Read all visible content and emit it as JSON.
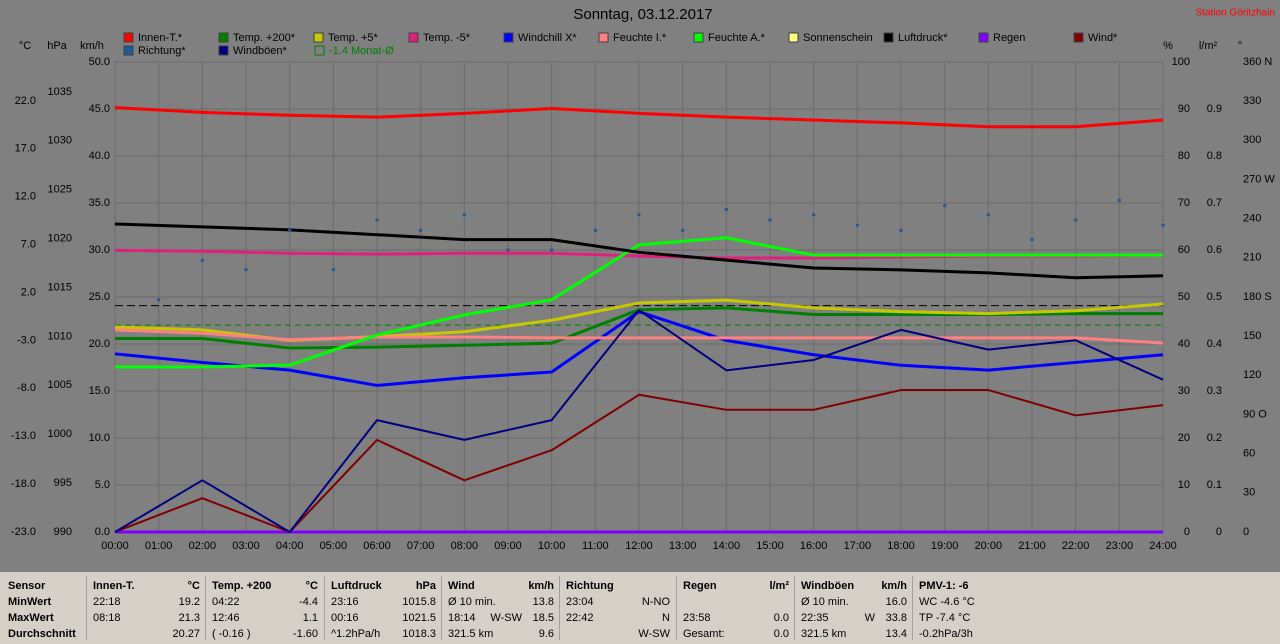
{
  "title": "Sonntag, 03.12.2017",
  "station": "Station Göritzhain",
  "chart_data": {
    "type": "line",
    "x": [
      0,
      2,
      4,
      6,
      8,
      10,
      12,
      14,
      16,
      18,
      20,
      22,
      24
    ],
    "xlim": [
      0,
      24
    ],
    "xticks": [
      {
        "value": 0,
        "label": "00:00"
      },
      {
        "value": 1,
        "label": "01:00"
      },
      {
        "value": 2,
        "label": "02:00"
      },
      {
        "value": 3,
        "label": "03:00"
      },
      {
        "value": 4,
        "label": "04:00"
      },
      {
        "value": 5,
        "label": "05:00"
      },
      {
        "value": 6,
        "label": "06:00"
      },
      {
        "value": 7,
        "label": "07:00"
      },
      {
        "value": 8,
        "label": "08:00"
      },
      {
        "value": 9,
        "label": "09:00"
      },
      {
        "value": 10,
        "label": "10:00"
      },
      {
        "value": 11,
        "label": "11:00"
      },
      {
        "value": 12,
        "label": "12:00"
      },
      {
        "value": 13,
        "label": "13:00"
      },
      {
        "value": 14,
        "label": "14:00"
      },
      {
        "value": 15,
        "label": "15:00"
      },
      {
        "value": 16,
        "label": "16:00"
      },
      {
        "value": 17,
        "label": "17:00"
      },
      {
        "value": 18,
        "label": "18:00"
      },
      {
        "value": 19,
        "label": "19:00"
      },
      {
        "value": 20,
        "label": "20:00"
      },
      {
        "value": 21,
        "label": "21:00"
      },
      {
        "value": 22,
        "label": "22:00"
      },
      {
        "value": 23,
        "label": "23:00"
      },
      {
        "value": 24,
        "label": "24:00"
      }
    ],
    "grid": true,
    "axes": [
      {
        "id": "C",
        "unit": "°C",
        "lim": [
          -23,
          26.06
        ],
        "ticks": [
          {
            "value": -23,
            "label": "-23.0"
          },
          {
            "value": -18,
            "label": "-18.0"
          },
          {
            "value": -13,
            "label": "-13.0"
          },
          {
            "value": -8,
            "label": "-8.0"
          },
          {
            "value": -3,
            "label": "-3.0"
          },
          {
            "value": 2,
            "label": "2.0"
          },
          {
            "value": 7,
            "label": "7.0"
          },
          {
            "value": 12,
            "label": "12.0"
          },
          {
            "value": 17,
            "label": "17.0"
          },
          {
            "value": 22,
            "label": "22.0"
          }
        ]
      },
      {
        "id": "P",
        "unit": "hPa",
        "lim": [
          990,
          1038.06
        ],
        "ticks": [
          990,
          995,
          1000,
          1005,
          1010,
          1015,
          1020,
          1025,
          1030,
          1035
        ]
      },
      {
        "id": "K",
        "unit": "km/h",
        "lim": [
          0,
          50
        ],
        "ticks": [
          {
            "value": 0,
            "label": "0.0"
          },
          {
            "value": 5,
            "label": "5.0"
          },
          {
            "value": 10,
            "label": "10.0"
          },
          {
            "value": 15,
            "label": "15.0"
          },
          {
            "value": 20,
            "label": "20.0"
          },
          {
            "value": 25,
            "label": "25.0"
          },
          {
            "value": 30,
            "label": "30.0"
          },
          {
            "value": 35,
            "label": "35.0"
          },
          {
            "value": 40,
            "label": "40.0"
          },
          {
            "value": 45,
            "label": "45.0"
          },
          {
            "value": 50,
            "label": "50.0"
          }
        ]
      },
      {
        "id": "H",
        "unit": "%",
        "lim": [
          0,
          100
        ],
        "ticks": [
          0,
          10,
          20,
          30,
          40,
          50,
          60,
          70,
          80,
          90,
          100
        ]
      },
      {
        "id": "R",
        "unit": "l/m²",
        "lim": [
          0,
          1
        ],
        "ticks": [
          0,
          0.1,
          0.2,
          0.3,
          0.4,
          0.5,
          0.6,
          0.7,
          0.8,
          0.9
        ]
      },
      {
        "id": "D",
        "unit": "°",
        "lim": [
          0,
          360
        ],
        "ticks": [
          0,
          30,
          60,
          {
            "value": 90,
            "label": "90 O"
          },
          120,
          150,
          {
            "value": 180,
            "label": "180 S"
          },
          210,
          240,
          {
            "value": 270,
            "label": "270 W"
          },
          300,
          330,
          {
            "value": 360,
            "label": "360 N"
          }
        ]
      }
    ],
    "series": [
      {
        "name": "Innen-T.*",
        "color": "#ff0000",
        "axis": "C",
        "values": [
          21.3,
          20.8,
          20.5,
          20.3,
          20.7,
          21.2,
          20.7,
          20.3,
          20.0,
          19.7,
          19.3,
          19.3,
          20.0
        ]
      },
      {
        "name": "Temp. +200*",
        "color": "#008000",
        "axis": "C",
        "values": [
          -2.8,
          -2.8,
          -3.8,
          -3.7,
          -3.5,
          -3.3,
          0.2,
          0.4,
          -0.3,
          -0.3,
          -0.3,
          -0.2,
          -0.2
        ]
      },
      {
        "name": "Temp. +5*",
        "color": "#c8c800",
        "axis": "C",
        "values": [
          -1.6,
          -1.9,
          -3.0,
          -2.6,
          -2.1,
          -0.9,
          0.9,
          1.2,
          0.4,
          0.0,
          -0.2,
          0.1,
          0.8
        ]
      },
      {
        "name": "Temp. -5*",
        "color": "#e0207f",
        "axis": "C",
        "values": [
          6.4,
          6.3,
          6.1,
          6.0,
          6.1,
          6.1,
          5.8,
          5.6,
          5.6,
          5.7,
          5.8,
          5.8,
          5.9
        ]
      },
      {
        "name": "Windchill X*",
        "color": "#0000ff",
        "axis": "C",
        "values": [
          -4.4,
          -5.3,
          -6.1,
          -7.7,
          -6.9,
          -6.3,
          0.0,
          -3.0,
          -4.5,
          -5.6,
          -6.1,
          -5.3,
          -4.5
        ]
      },
      {
        "name": "Feuchte I.*",
        "color": "#ff8080",
        "axis": "H",
        "values": [
          43.0,
          42.3,
          40.9,
          41.5,
          41.5,
          41.3,
          41.3,
          41.3,
          41.3,
          41.3,
          41.3,
          41.3,
          40.2
        ]
      },
      {
        "name": "Feuchte A.*",
        "color": "#00ff00",
        "axis": "H",
        "values": [
          35.1,
          35.1,
          35.5,
          41.9,
          46.2,
          49.4,
          61.1,
          62.6,
          58.9,
          58.9,
          58.9,
          58.9,
          58.9
        ]
      },
      {
        "name": "Sonnenschein",
        "color": "#ffff80",
        "axis": "H",
        "values": [
          0,
          0,
          0,
          0,
          0,
          0,
          0,
          0,
          0,
          0,
          0,
          0,
          0
        ]
      },
      {
        "name": "Luftdruck*",
        "color": "#000000",
        "axis": "P",
        "values": [
          1021.5,
          1021.2,
          1020.9,
          1020.4,
          1019.9,
          1019.9,
          1018.6,
          1017.8,
          1017.0,
          1016.8,
          1016.5,
          1016.0,
          1016.2
        ]
      },
      {
        "name": "Regen",
        "color": "#8000ff",
        "axis": "R",
        "values": [
          0,
          0,
          0,
          0,
          0,
          0,
          0,
          0,
          0,
          0,
          0,
          0,
          0
        ]
      },
      {
        "name": "Wind*",
        "color": "#800000",
        "axis": "K",
        "values": [
          0,
          3.6,
          0,
          9.8,
          5.5,
          8.7,
          14.6,
          13.0,
          13.0,
          15.1,
          15.1,
          12.4,
          13.5
        ]
      },
      {
        "name": "Richtung*",
        "color": "#1e5a96",
        "axis": "D",
        "type": "scatter",
        "x": [
          1,
          2,
          3,
          4,
          5,
          6,
          7,
          8,
          9,
          10,
          11,
          12,
          13,
          14,
          15,
          16,
          17,
          18,
          19,
          20,
          21,
          22,
          23,
          24
        ],
        "values": [
          178,
          208,
          201,
          231,
          201,
          239,
          231,
          243,
          216,
          216,
          231,
          243,
          231,
          247,
          239,
          243,
          235,
          231,
          250,
          243,
          224,
          239,
          254,
          235
        ]
      },
      {
        "name": "Windböen*",
        "color": "#000080",
        "axis": "K",
        "values": [
          0,
          5.5,
          0,
          11.9,
          9.8,
          11.9,
          23.6,
          17.2,
          18.3,
          21.5,
          19.4,
          20.4,
          16.2
        ]
      }
    ],
    "reference_lines": [
      {
        "label": "-1.4 Monat-Ø",
        "value": -1.4,
        "axis": "C",
        "color": "#008000"
      }
    ]
  },
  "table": {
    "row_labels": [
      "Sensor",
      "MinWert",
      "MaxWert",
      "Durchschnitt"
    ],
    "groups": [
      {
        "name": "Innen-T.",
        "unit": "°C",
        "rows": [
          [
            "22:18",
            "19.2"
          ],
          [
            "08:18",
            "21.3"
          ],
          [
            "20.27"
          ]
        ]
      },
      {
        "name": "Temp. +200",
        "unit": "°C",
        "rows": [
          [
            "04:22",
            "-4.4"
          ],
          [
            "12:46",
            "1.1"
          ],
          [
            "( -0.16 )",
            "-1.60"
          ]
        ]
      },
      {
        "name": "Luftdruck",
        "unit": "hPa",
        "rows": [
          [
            "23:16",
            "1015.8"
          ],
          [
            "00:16",
            "1021.5"
          ],
          [
            "^1.2hPa/h",
            "1018.3"
          ]
        ]
      },
      {
        "name": "Wind",
        "unit": "km/h",
        "rows": [
          [
            "Ø 10 min.",
            "13.8"
          ],
          [
            "18:14",
            "W-SW",
            "18.5"
          ],
          [
            "321.5 km",
            "9.6"
          ]
        ]
      },
      {
        "name": "Richtung",
        "rows": [
          [
            "23:04",
            "N-NO"
          ],
          [
            "22:42",
            "N"
          ],
          [
            "W-SW"
          ]
        ]
      },
      {
        "name": "Regen",
        "unit": "l/m²",
        "rows": [
          [],
          [
            "23:58",
            "0.0"
          ],
          [
            "Gesamt:",
            "0.0"
          ]
        ]
      },
      {
        "name": "Windböen",
        "unit": "km/h",
        "rows": [
          [
            "Ø 10 min.",
            "16.0"
          ],
          [
            "22:35",
            "W",
            "33.8"
          ],
          [
            "321.5 km",
            "13.4"
          ]
        ]
      },
      {
        "name": "PMV-1: -6",
        "rows": [
          [
            "WC -4.6 °C"
          ],
          [
            "TP -7.4 °C"
          ],
          [
            "-0.2hPa/3h"
          ]
        ]
      }
    ]
  }
}
